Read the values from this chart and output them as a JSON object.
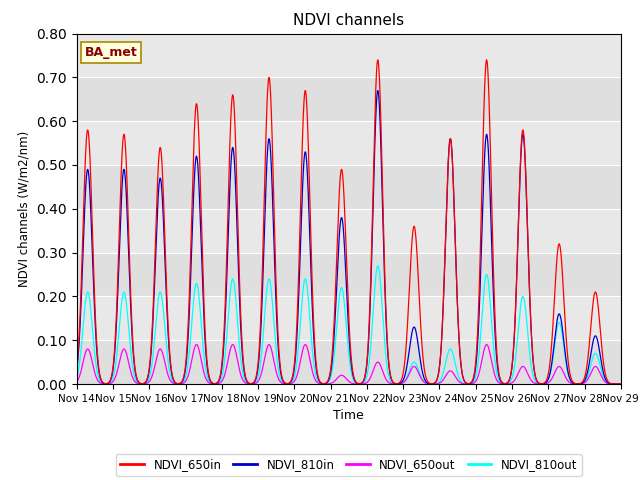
{
  "title": "NDVI channels",
  "xlabel": "Time",
  "ylabel": "NDVI channels (W/m2/nm)",
  "ylim": [
    0.0,
    0.8
  ],
  "annotation": "BA_met",
  "legend_labels": [
    "NDVI_650in",
    "NDVI_810in",
    "NDVI_650out",
    "NDVI_810out"
  ],
  "line_colors": [
    "red",
    "#0000cc",
    "magenta",
    "cyan"
  ],
  "x_tick_labels": [
    "Nov 14",
    "Nov 15",
    "Nov 16",
    "Nov 17",
    "Nov 18",
    "Nov 19",
    "Nov 20",
    "Nov 21",
    "Nov 22",
    "Nov 23",
    "Nov 24",
    "Nov 25",
    "Nov 26",
    "Nov 27",
    "Nov 28",
    "Nov 29"
  ],
  "background_color": "#e8e8e8",
  "peak_days": [
    14.3,
    15.3,
    16.3,
    17.3,
    18.3,
    19.3,
    20.3,
    21.3,
    22.3,
    23.3,
    24.3,
    25.3,
    26.3,
    27.3,
    28.3
  ],
  "peaks_650in": [
    0.58,
    0.57,
    0.54,
    0.64,
    0.66,
    0.7,
    0.67,
    0.49,
    0.74,
    0.36,
    0.56,
    0.74,
    0.58,
    0.32,
    0.21
  ],
  "peaks_810in": [
    0.49,
    0.49,
    0.47,
    0.52,
    0.54,
    0.56,
    0.53,
    0.38,
    0.67,
    0.13,
    0.56,
    0.57,
    0.57,
    0.16,
    0.11
  ],
  "peaks_650out": [
    0.08,
    0.08,
    0.08,
    0.09,
    0.09,
    0.09,
    0.09,
    0.02,
    0.05,
    0.04,
    0.03,
    0.09,
    0.04,
    0.04,
    0.04
  ],
  "peaks_810out": [
    0.21,
    0.21,
    0.21,
    0.23,
    0.24,
    0.24,
    0.24,
    0.22,
    0.27,
    0.05,
    0.08,
    0.25,
    0.2,
    0.14,
    0.07
  ],
  "sigma_in": 0.13,
  "sigma_out": 0.13
}
